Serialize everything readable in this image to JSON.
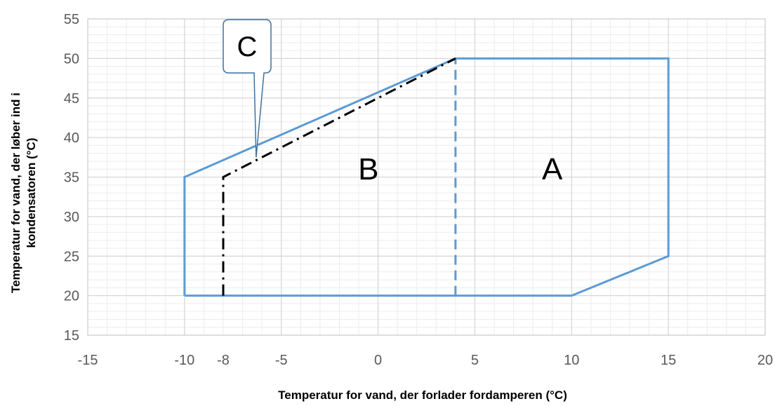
{
  "chart_data": {
    "type": "line",
    "xlabel": "Temperatur for vand, der forlader fordamperen (°C)",
    "ylabel_lines": [
      "Temperatur for vand, der løber ind i",
      "kondensatoren (°C)"
    ],
    "xlim": [
      -15,
      20
    ],
    "ylim": [
      15,
      55
    ],
    "x_ticks": [
      {
        "value": -15,
        "label": "-15"
      },
      {
        "value": -10,
        "label": "-10"
      },
      {
        "value": -8,
        "label": "-8"
      },
      {
        "value": -5,
        "label": "-5"
      },
      {
        "value": 0,
        "label": "0"
      },
      {
        "value": 5,
        "label": "5"
      },
      {
        "value": 10,
        "label": "10"
      },
      {
        "value": 15,
        "label": "15"
      },
      {
        "value": 20,
        "label": "20"
      }
    ],
    "y_ticks": [
      {
        "value": 15,
        "label": "15"
      },
      {
        "value": 20,
        "label": "20"
      },
      {
        "value": 25,
        "label": "25"
      },
      {
        "value": 30,
        "label": "30"
      },
      {
        "value": 35,
        "label": "35"
      },
      {
        "value": 40,
        "label": "40"
      },
      {
        "value": 45,
        "label": "45"
      },
      {
        "value": 50,
        "label": "50"
      },
      {
        "value": 55,
        "label": "55"
      }
    ],
    "grid": true,
    "minor_grid": true,
    "series": [
      {
        "style": "solid",
        "color": "#5b9bd5",
        "points": [
          [
            -10,
            20
          ],
          [
            -10,
            35
          ],
          [
            4,
            50
          ],
          [
            15,
            50
          ],
          [
            15,
            25
          ],
          [
            10,
            20
          ],
          [
            -10,
            20
          ]
        ]
      },
      {
        "style": "dashed",
        "color": "#5b9bd5",
        "points": [
          [
            4,
            20
          ],
          [
            4,
            50
          ]
        ]
      },
      {
        "style": "dash-dot",
        "color": "#000000",
        "points": [
          [
            -8,
            20
          ],
          [
            -8,
            35
          ],
          [
            4,
            50
          ]
        ]
      }
    ],
    "annotations": [
      {
        "label": "A",
        "x": 9,
        "y": 36
      },
      {
        "label": "B",
        "x": -0.5,
        "y": 36
      },
      {
        "label": "C",
        "callout_target": [
          -6.3,
          37.5
        ]
      }
    ]
  }
}
